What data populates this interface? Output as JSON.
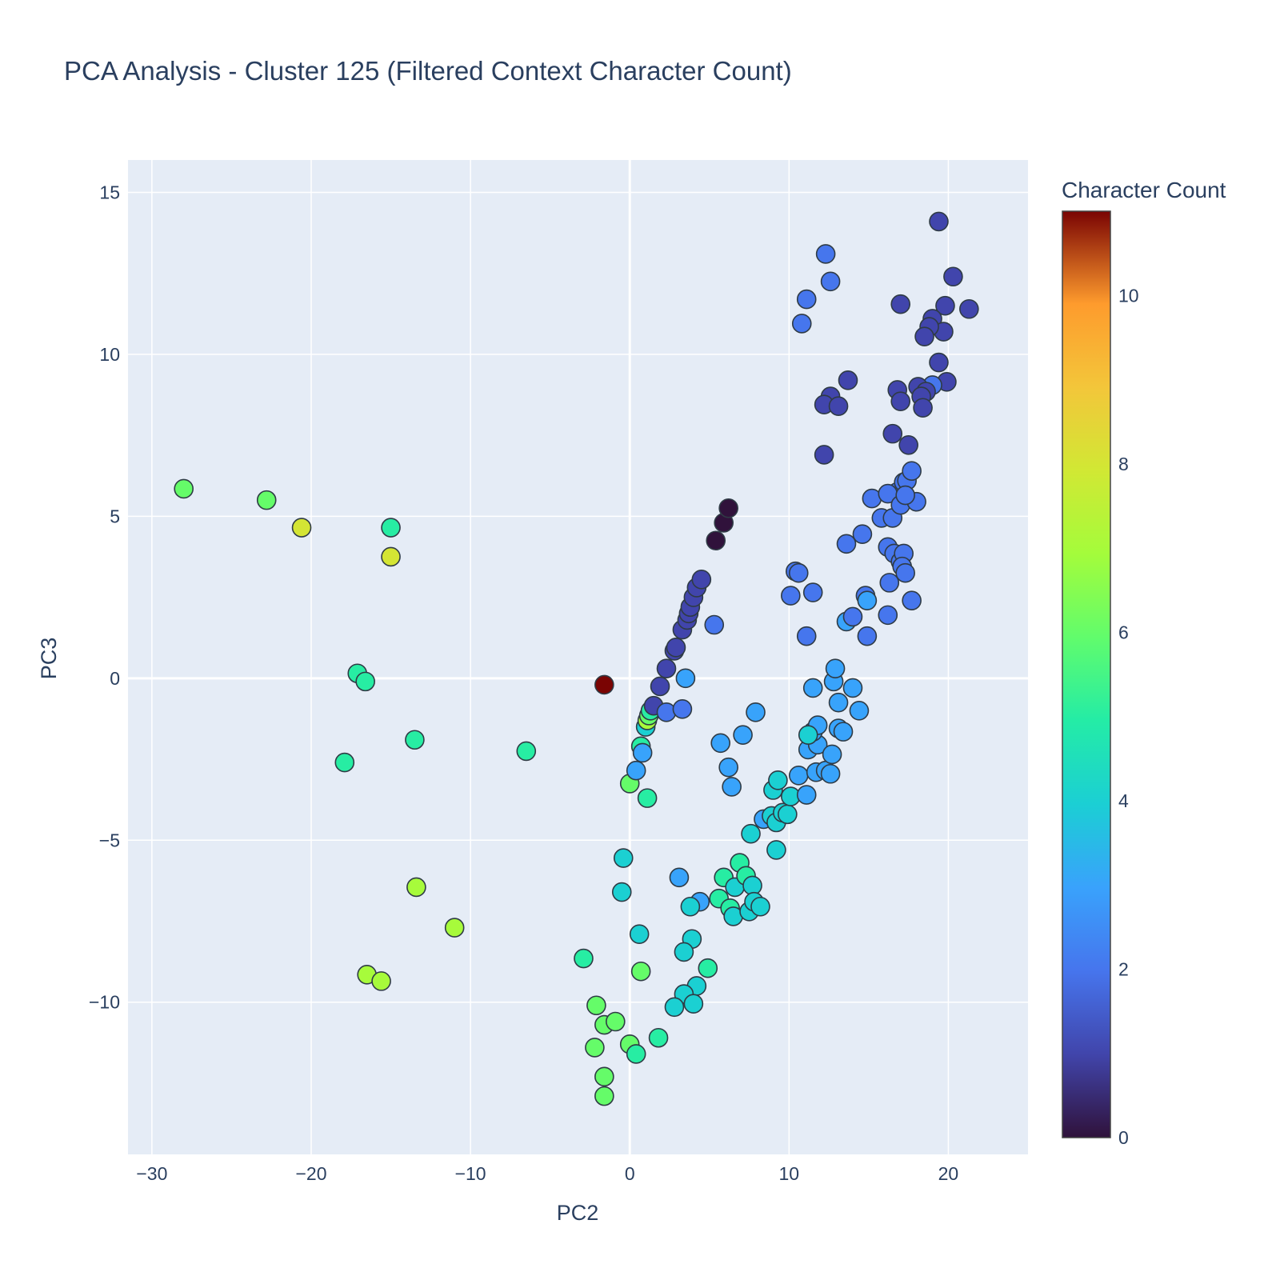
{
  "chart_data": {
    "type": "scatter",
    "title": "PCA Analysis - Cluster 125 (Filtered Context Character Count)",
    "xlabel": "PC2",
    "ylabel": "PC3",
    "xlim": [
      -31.5,
      25
    ],
    "ylim": [
      -14.7,
      16
    ],
    "xticks": [
      -30,
      -20,
      -10,
      0,
      10,
      20
    ],
    "yticks": [
      -10,
      -5,
      0,
      5,
      10,
      15
    ],
    "xtick_labels": [
      "−30",
      "−20",
      "−10",
      "0",
      "10",
      "20"
    ],
    "ytick_labels": [
      "−10",
      "−5",
      "0",
      "5",
      "10",
      "15"
    ],
    "grid": true,
    "colorbar": {
      "title": "Character Count",
      "range": [
        0,
        11
      ],
      "ticks": [
        0,
        2,
        4,
        6,
        8,
        10
      ],
      "tick_labels": [
        "0",
        "2",
        "4",
        "6",
        "8",
        "10"
      ],
      "colorscale": "Turbo"
    },
    "colors": {
      "plot_bg": "#e5ecf6",
      "grid": "#ffffff",
      "text": "#2a3f5f",
      "marker_outline": "#2f3b45"
    },
    "points": [
      {
        "x": -28,
        "y": 5.85,
        "c": 6
      },
      {
        "x": -22.8,
        "y": 5.5,
        "c": 6
      },
      {
        "x": -20.6,
        "y": 4.65,
        "c": 8
      },
      {
        "x": -15,
        "y": 4.65,
        "c": 5
      },
      {
        "x": -15,
        "y": 3.75,
        "c": 8
      },
      {
        "x": -17.1,
        "y": 0.15,
        "c": 5
      },
      {
        "x": -16.6,
        "y": -0.1,
        "c": 5
      },
      {
        "x": -13.5,
        "y": -1.9,
        "c": 5
      },
      {
        "x": -17.9,
        "y": -2.6,
        "c": 5
      },
      {
        "x": -6.5,
        "y": -2.25,
        "c": 5
      },
      {
        "x": -13.4,
        "y": -6.45,
        "c": 7
      },
      {
        "x": -11,
        "y": -7.7,
        "c": 7
      },
      {
        "x": -16.5,
        "y": -9.15,
        "c": 7
      },
      {
        "x": -15.6,
        "y": -9.35,
        "c": 7
      },
      {
        "x": -1.6,
        "y": -0.2,
        "c": 11
      },
      {
        "x": -2.9,
        "y": -8.65,
        "c": 5
      },
      {
        "x": -2.1,
        "y": -10.1,
        "c": 6
      },
      {
        "x": -1.6,
        "y": -10.7,
        "c": 6
      },
      {
        "x": -0.9,
        "y": -10.6,
        "c": 6
      },
      {
        "x": -2.2,
        "y": -11.4,
        "c": 6
      },
      {
        "x": 0,
        "y": -11.3,
        "c": 6
      },
      {
        "x": 0.4,
        "y": -11.6,
        "c": 5
      },
      {
        "x": -1.6,
        "y": -12.3,
        "c": 6
      },
      {
        "x": -1.6,
        "y": -12.9,
        "c": 6
      },
      {
        "x": 1.8,
        "y": -11.1,
        "c": 5
      },
      {
        "x": 0.7,
        "y": -9.05,
        "c": 6
      },
      {
        "x": 0.6,
        "y": -7.9,
        "c": 4
      },
      {
        "x": -0.5,
        "y": -6.6,
        "c": 4
      },
      {
        "x": -0.4,
        "y": -5.55,
        "c": 4
      },
      {
        "x": 0,
        "y": -3.25,
        "c": 6
      },
      {
        "x": 1.1,
        "y": -3.7,
        "c": 5
      },
      {
        "x": 0.4,
        "y": -2.85,
        "c": 3
      },
      {
        "x": 0.7,
        "y": -2.1,
        "c": 5
      },
      {
        "x": 0.8,
        "y": -2.3,
        "c": 3
      },
      {
        "x": 1,
        "y": -1.5,
        "c": 4
      },
      {
        "x": 1.1,
        "y": -1.3,
        "c": 7
      },
      {
        "x": 1.2,
        "y": -1.15,
        "c": 6
      },
      {
        "x": 1.3,
        "y": -1.0,
        "c": 5
      },
      {
        "x": 1.5,
        "y": -0.85,
        "c": 1
      },
      {
        "x": 1.9,
        "y": -0.25,
        "c": 1
      },
      {
        "x": 2.3,
        "y": -1.05,
        "c": 2
      },
      {
        "x": 3.3,
        "y": -0.95,
        "c": 2
      },
      {
        "x": 3.5,
        "y": 0,
        "c": 3
      },
      {
        "x": 2.3,
        "y": 0.3,
        "c": 1
      },
      {
        "x": 2.8,
        "y": 0.85,
        "c": 1
      },
      {
        "x": 2.9,
        "y": 0.95,
        "c": 1
      },
      {
        "x": 3.3,
        "y": 1.5,
        "c": 1
      },
      {
        "x": 3.6,
        "y": 1.8,
        "c": 1
      },
      {
        "x": 3.7,
        "y": 2.0,
        "c": 1
      },
      {
        "x": 3.8,
        "y": 2.2,
        "c": 1
      },
      {
        "x": 4,
        "y": 2.5,
        "c": 1
      },
      {
        "x": 4.2,
        "y": 2.8,
        "c": 1
      },
      {
        "x": 4.5,
        "y": 3.05,
        "c": 1
      },
      {
        "x": 5.3,
        "y": 1.65,
        "c": 2
      },
      {
        "x": 5.4,
        "y": 4.25,
        "c": 0
      },
      {
        "x": 5.9,
        "y": 4.8,
        "c": 0
      },
      {
        "x": 6.2,
        "y": 5.25,
        "c": 0
      },
      {
        "x": 5.7,
        "y": -2.0,
        "c": 3
      },
      {
        "x": 7.1,
        "y": -1.75,
        "c": 3
      },
      {
        "x": 7.9,
        "y": -1.05,
        "c": 3
      },
      {
        "x": 6.2,
        "y": -2.75,
        "c": 3
      },
      {
        "x": 6.4,
        "y": -3.35,
        "c": 3
      },
      {
        "x": 3.1,
        "y": -6.15,
        "c": 3
      },
      {
        "x": 4.4,
        "y": -6.9,
        "c": 3
      },
      {
        "x": 3.8,
        "y": -7.05,
        "c": 4
      },
      {
        "x": 3.9,
        "y": -8.05,
        "c": 4
      },
      {
        "x": 3.4,
        "y": -8.45,
        "c": 4
      },
      {
        "x": 4.9,
        "y": -8.95,
        "c": 5
      },
      {
        "x": 4.2,
        "y": -9.5,
        "c": 4
      },
      {
        "x": 3.4,
        "y": -9.75,
        "c": 4
      },
      {
        "x": 2.8,
        "y": -10.15,
        "c": 4
      },
      {
        "x": 4.0,
        "y": -10.05,
        "c": 4
      },
      {
        "x": 5.6,
        "y": -6.8,
        "c": 5
      },
      {
        "x": 5.9,
        "y": -6.15,
        "c": 5
      },
      {
        "x": 6.3,
        "y": -7.1,
        "c": 5
      },
      {
        "x": 6.5,
        "y": -7.35,
        "c": 4
      },
      {
        "x": 6.6,
        "y": -6.45,
        "c": 4
      },
      {
        "x": 6.9,
        "y": -5.7,
        "c": 5
      },
      {
        "x": 7.3,
        "y": -6.1,
        "c": 5
      },
      {
        "x": 7.5,
        "y": -7.2,
        "c": 4
      },
      {
        "x": 7.7,
        "y": -6.4,
        "c": 4
      },
      {
        "x": 7.8,
        "y": -6.9,
        "c": 4
      },
      {
        "x": 8.2,
        "y": -7.05,
        "c": 4
      },
      {
        "x": 7.6,
        "y": -4.8,
        "c": 4
      },
      {
        "x": 8.4,
        "y": -4.35,
        "c": 3
      },
      {
        "x": 8.9,
        "y": -4.25,
        "c": 4
      },
      {
        "x": 9.2,
        "y": -4.45,
        "c": 4
      },
      {
        "x": 9.6,
        "y": -4.15,
        "c": 4
      },
      {
        "x": 9.9,
        "y": -4.2,
        "c": 4
      },
      {
        "x": 10.1,
        "y": -3.65,
        "c": 4
      },
      {
        "x": 9.0,
        "y": -3.45,
        "c": 4
      },
      {
        "x": 9.3,
        "y": -3.15,
        "c": 4
      },
      {
        "x": 10.6,
        "y": -3.0,
        "c": 3
      },
      {
        "x": 11.1,
        "y": -3.6,
        "c": 3
      },
      {
        "x": 9.2,
        "y": -5.3,
        "c": 4
      },
      {
        "x": 11.7,
        "y": -2.9,
        "c": 3
      },
      {
        "x": 12.3,
        "y": -2.85,
        "c": 3
      },
      {
        "x": 12.6,
        "y": -2.95,
        "c": 3
      },
      {
        "x": 11.2,
        "y": -2.2,
        "c": 3
      },
      {
        "x": 11.8,
        "y": -2.05,
        "c": 3
      },
      {
        "x": 11.5,
        "y": -1.65,
        "c": 3
      },
      {
        "x": 11.8,
        "y": -1.45,
        "c": 3
      },
      {
        "x": 11.2,
        "y": -1.75,
        "c": 4
      },
      {
        "x": 12.7,
        "y": -2.35,
        "c": 3
      },
      {
        "x": 13.1,
        "y": -1.55,
        "c": 3
      },
      {
        "x": 13.4,
        "y": -1.65,
        "c": 3
      },
      {
        "x": 13.1,
        "y": -0.75,
        "c": 3
      },
      {
        "x": 14.4,
        "y": -1.0,
        "c": 3
      },
      {
        "x": 14.0,
        "y": -0.3,
        "c": 3
      },
      {
        "x": 12.8,
        "y": -0.1,
        "c": 3
      },
      {
        "x": 12.9,
        "y": 0.3,
        "c": 3
      },
      {
        "x": 11.5,
        "y": -0.3,
        "c": 3
      },
      {
        "x": 10.1,
        "y": 2.55,
        "c": 2
      },
      {
        "x": 10.4,
        "y": 3.3,
        "c": 2
      },
      {
        "x": 10.6,
        "y": 3.25,
        "c": 2
      },
      {
        "x": 11.5,
        "y": 2.65,
        "c": 2
      },
      {
        "x": 11.1,
        "y": 1.3,
        "c": 2
      },
      {
        "x": 13.6,
        "y": 1.75,
        "c": 3
      },
      {
        "x": 14.0,
        "y": 1.9,
        "c": 2
      },
      {
        "x": 14.8,
        "y": 2.55,
        "c": 2
      },
      {
        "x": 14.9,
        "y": 2.4,
        "c": 3
      },
      {
        "x": 14.9,
        "y": 1.3,
        "c": 2
      },
      {
        "x": 13.6,
        "y": 4.15,
        "c": 2
      },
      {
        "x": 14.6,
        "y": 4.45,
        "c": 2
      },
      {
        "x": 15.2,
        "y": 5.55,
        "c": 2
      },
      {
        "x": 15.8,
        "y": 4.95,
        "c": 2
      },
      {
        "x": 16.2,
        "y": 4.05,
        "c": 2
      },
      {
        "x": 16.6,
        "y": 3.85,
        "c": 2
      },
      {
        "x": 17.0,
        "y": 3.6,
        "c": 2
      },
      {
        "x": 17.2,
        "y": 3.85,
        "c": 2
      },
      {
        "x": 17.1,
        "y": 3.45,
        "c": 2
      },
      {
        "x": 17.3,
        "y": 3.25,
        "c": 2
      },
      {
        "x": 16.3,
        "y": 2.95,
        "c": 2
      },
      {
        "x": 16.2,
        "y": 1.95,
        "c": 2
      },
      {
        "x": 17.7,
        "y": 2.4,
        "c": 2
      },
      {
        "x": 16.5,
        "y": 4.95,
        "c": 2
      },
      {
        "x": 16.8,
        "y": 5.75,
        "c": 2
      },
      {
        "x": 16.2,
        "y": 5.7,
        "c": 2
      },
      {
        "x": 17.0,
        "y": 5.35,
        "c": 2
      },
      {
        "x": 17.2,
        "y": 6.05,
        "c": 2
      },
      {
        "x": 17.4,
        "y": 6.1,
        "c": 2
      },
      {
        "x": 17.7,
        "y": 6.4,
        "c": 2
      },
      {
        "x": 18.0,
        "y": 5.45,
        "c": 2
      },
      {
        "x": 17.3,
        "y": 5.65,
        "c": 2
      },
      {
        "x": 11.1,
        "y": 11.7,
        "c": 2
      },
      {
        "x": 10.8,
        "y": 10.95,
        "c": 2
      },
      {
        "x": 12.3,
        "y": 13.1,
        "c": 2
      },
      {
        "x": 12.6,
        "y": 12.25,
        "c": 2
      },
      {
        "x": 19.4,
        "y": 14.1,
        "c": 1
      },
      {
        "x": 20.3,
        "y": 12.4,
        "c": 1
      },
      {
        "x": 21.3,
        "y": 11.4,
        "c": 1
      },
      {
        "x": 19.8,
        "y": 11.5,
        "c": 1
      },
      {
        "x": 17.0,
        "y": 11.55,
        "c": 1
      },
      {
        "x": 19.0,
        "y": 11.1,
        "c": 1
      },
      {
        "x": 19.7,
        "y": 10.7,
        "c": 1
      },
      {
        "x": 18.8,
        "y": 10.85,
        "c": 1
      },
      {
        "x": 18.5,
        "y": 10.55,
        "c": 1
      },
      {
        "x": 19.4,
        "y": 9.75,
        "c": 1
      },
      {
        "x": 19.9,
        "y": 9.15,
        "c": 1
      },
      {
        "x": 19.0,
        "y": 9.05,
        "c": 2
      },
      {
        "x": 18.1,
        "y": 9.0,
        "c": 1
      },
      {
        "x": 18.6,
        "y": 8.85,
        "c": 1
      },
      {
        "x": 16.8,
        "y": 8.9,
        "c": 1
      },
      {
        "x": 17.0,
        "y": 8.55,
        "c": 1
      },
      {
        "x": 18.3,
        "y": 8.7,
        "c": 1
      },
      {
        "x": 18.4,
        "y": 8.35,
        "c": 1
      },
      {
        "x": 13.7,
        "y": 9.2,
        "c": 1
      },
      {
        "x": 12.6,
        "y": 8.7,
        "c": 1
      },
      {
        "x": 12.2,
        "y": 8.45,
        "c": 1
      },
      {
        "x": 13.1,
        "y": 8.4,
        "c": 1
      },
      {
        "x": 16.5,
        "y": 7.55,
        "c": 1
      },
      {
        "x": 17.5,
        "y": 7.2,
        "c": 1
      },
      {
        "x": 12.2,
        "y": 6.9,
        "c": 1
      }
    ]
  }
}
